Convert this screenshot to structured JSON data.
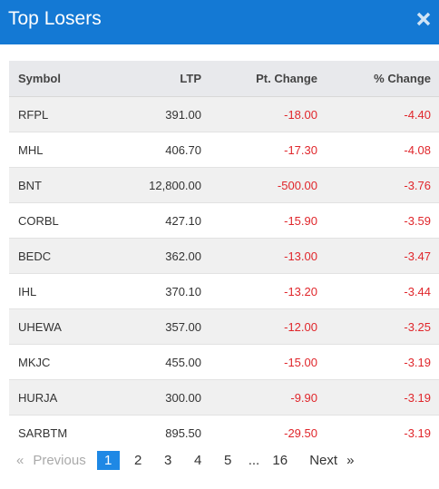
{
  "modal": {
    "title": "Top Losers",
    "close_icon": "close-icon",
    "accent_color": "#1479d4"
  },
  "table": {
    "headers": [
      "Symbol",
      "LTP",
      "Pt. Change",
      "% Change"
    ],
    "negative_color": "#e0262b",
    "rows": [
      {
        "symbol": "RFPL",
        "ltp": "391.00",
        "pt_change": "-18.00",
        "pct_change": "-4.40"
      },
      {
        "symbol": "MHL",
        "ltp": "406.70",
        "pt_change": "-17.30",
        "pct_change": "-4.08"
      },
      {
        "symbol": "BNT",
        "ltp": "12,800.00",
        "pt_change": "-500.00",
        "pct_change": "-3.76"
      },
      {
        "symbol": "CORBL",
        "ltp": "427.10",
        "pt_change": "-15.90",
        "pct_change": "-3.59"
      },
      {
        "symbol": "BEDC",
        "ltp": "362.00",
        "pt_change": "-13.00",
        "pct_change": "-3.47"
      },
      {
        "symbol": "IHL",
        "ltp": "370.10",
        "pt_change": "-13.20",
        "pct_change": "-3.44"
      },
      {
        "symbol": "UHEWA",
        "ltp": "357.00",
        "pt_change": "-12.00",
        "pct_change": "-3.25"
      },
      {
        "symbol": "MKJC",
        "ltp": "455.00",
        "pt_change": "-15.00",
        "pct_change": "-3.19"
      },
      {
        "symbol": "HURJA",
        "ltp": "300.00",
        "pt_change": "-9.90",
        "pct_change": "-3.19"
      },
      {
        "symbol": "SARBTM",
        "ltp": "895.50",
        "pt_change": "-29.50",
        "pct_change": "-3.19"
      }
    ]
  },
  "pagination": {
    "prev_arrow": "«",
    "prev_label": "Previous",
    "pages": [
      "1",
      "2",
      "3",
      "4",
      "5"
    ],
    "active_page": "1",
    "ellipsis": "...",
    "last_page": "16",
    "next_label": "Next",
    "next_arrow": "»",
    "active_color": "#1e88e5"
  }
}
